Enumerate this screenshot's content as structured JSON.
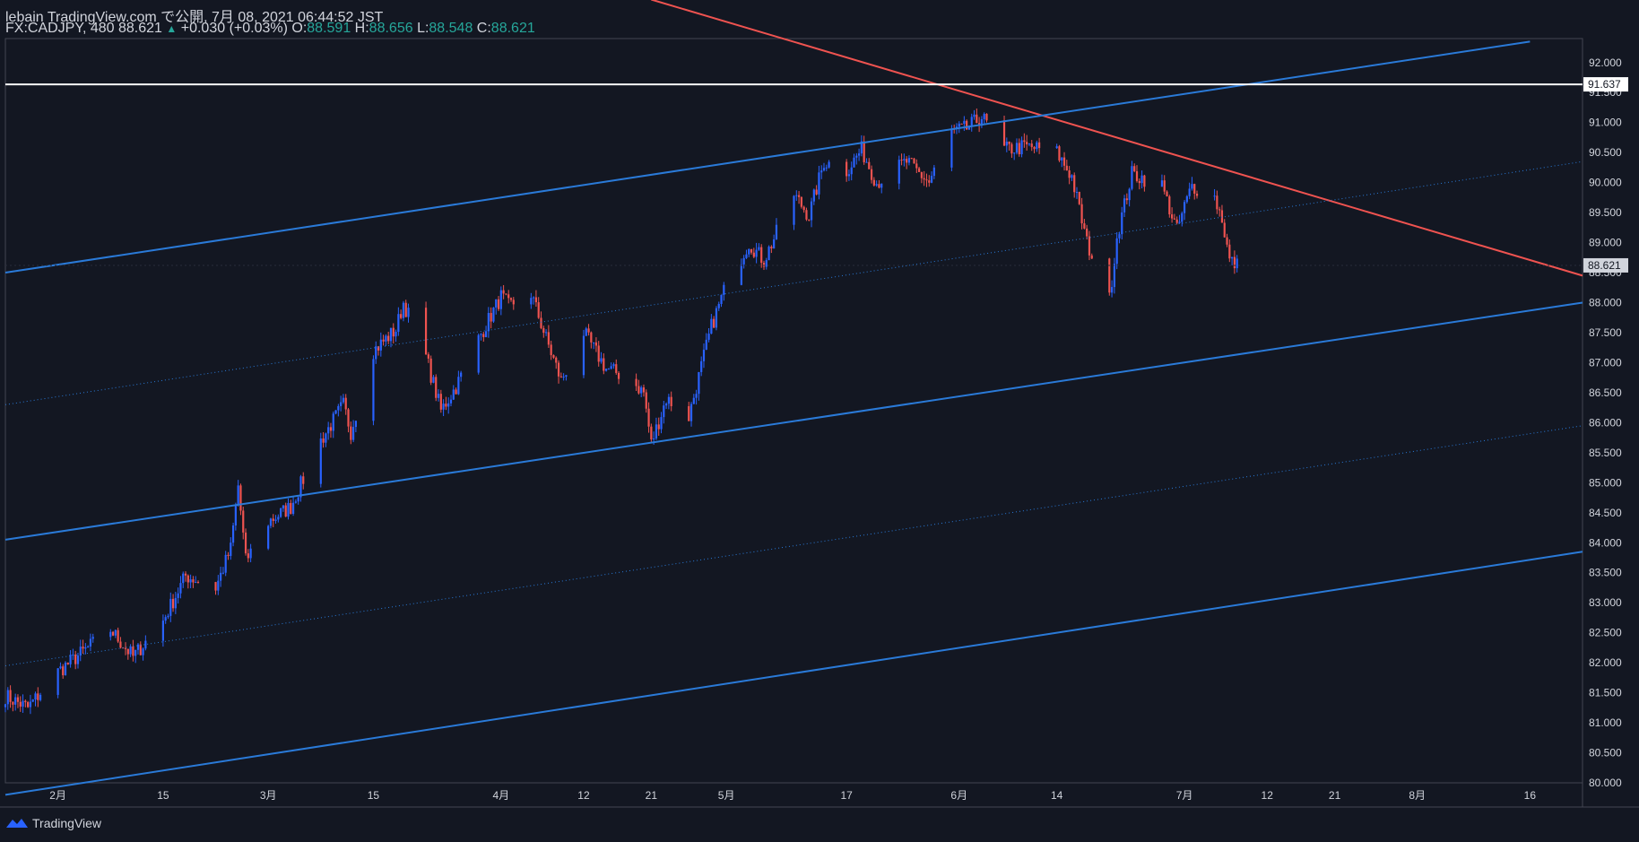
{
  "header": {
    "publish_line": "lebain TradingView.com で公開, 7月 08, 2021 06:44:52 JST",
    "symbol": "FX:CADJPY, 480",
    "last": "88.621",
    "change": "+0.030 (+0.03%)",
    "o_label": "O:",
    "o_value": "88.591",
    "h_label": "H:",
    "h_value": "88.656",
    "l_label": "L:",
    "l_value": "88.548",
    "c_label": "C:",
    "c_value": "88.621"
  },
  "footer": {
    "brand": "TradingView"
  },
  "colors": {
    "bg": "#131722",
    "up": "#2962ff",
    "down": "#ef5350",
    "channel": "#2a7ad8",
    "resistance": "#ef5350",
    "grid_text": "#d1d4dc"
  },
  "chart_data": {
    "type": "candlestick",
    "ylim": [
      80.0,
      92.4
    ],
    "y_ticks": [
      80.0,
      80.5,
      81.0,
      81.5,
      82.0,
      82.5,
      83.0,
      83.5,
      84.0,
      84.5,
      85.0,
      85.5,
      86.0,
      86.5,
      87.0,
      87.5,
      88.0,
      88.5,
      89.0,
      89.5,
      90.0,
      90.5,
      91.0,
      91.5,
      92.0
    ],
    "y_tick_labels": [
      "80.000",
      "80.500",
      "81.000",
      "81.500",
      "82.000",
      "82.500",
      "83.000",
      "83.500",
      "84.000",
      "84.500",
      "85.000",
      "85.500",
      "86.000",
      "86.500",
      "87.000",
      "87.500",
      "88.000",
      "88.500",
      "89.000",
      "89.500",
      "90.000",
      "90.500",
      "91.000",
      "91.500",
      "92.000"
    ],
    "x_start": "2021-01-25",
    "x_end": "2021-08-23",
    "x_ticks": [
      {
        "label": "2月",
        "date": "2021-02-01"
      },
      {
        "label": "15",
        "date": "2021-02-15"
      },
      {
        "label": "3月",
        "date": "2021-03-01"
      },
      {
        "label": "15",
        "date": "2021-03-15"
      },
      {
        "label": "4月",
        "date": "2021-04-01"
      },
      {
        "label": "12",
        "date": "2021-04-12"
      },
      {
        "label": "21",
        "date": "2021-04-21"
      },
      {
        "label": "5月",
        "date": "2021-05-01"
      },
      {
        "label": "17",
        "date": "2021-05-17"
      },
      {
        "label": "6月",
        "date": "2021-06-01"
      },
      {
        "label": "14",
        "date": "2021-06-14"
      },
      {
        "label": "7月",
        "date": "2021-07-01"
      },
      {
        "label": "12",
        "date": "2021-07-12"
      },
      {
        "label": "21",
        "date": "2021-07-21"
      },
      {
        "label": "8月",
        "date": "2021-08-01"
      },
      {
        "label": "16",
        "date": "2021-08-16"
      }
    ],
    "price_path": [
      [
        "2021-01-25",
        81.45
      ],
      [
        "2021-01-28",
        81.25
      ],
      [
        "2021-02-01",
        81.85
      ],
      [
        "2021-02-04",
        82.15
      ],
      [
        "2021-02-08",
        82.55
      ],
      [
        "2021-02-11",
        82.1
      ],
      [
        "2021-02-15",
        82.7
      ],
      [
        "2021-02-18",
        83.45
      ],
      [
        "2021-02-22",
        83.25
      ],
      [
        "2021-02-24",
        83.9
      ],
      [
        "2021-02-25",
        84.95
      ],
      [
        "2021-02-26",
        83.7
      ],
      [
        "2021-03-01",
        84.35
      ],
      [
        "2021-03-04",
        84.6
      ],
      [
        "2021-03-08",
        85.7
      ],
      [
        "2021-03-11",
        86.3
      ],
      [
        "2021-03-12",
        85.85
      ],
      [
        "2021-03-15",
        87.2
      ],
      [
        "2021-03-18",
        87.55
      ],
      [
        "2021-03-19",
        88.0
      ],
      [
        "2021-03-22",
        87.1
      ],
      [
        "2021-03-24",
        86.2
      ],
      [
        "2021-03-26",
        86.6
      ],
      [
        "2021-03-29",
        87.4
      ],
      [
        "2021-04-01",
        88.1
      ],
      [
        "2021-04-02",
        87.95
      ],
      [
        "2021-04-05",
        88.15
      ],
      [
        "2021-04-07",
        87.4
      ],
      [
        "2021-04-09",
        86.7
      ],
      [
        "2021-04-12",
        87.5
      ],
      [
        "2021-04-15",
        86.9
      ],
      [
        "2021-04-18",
        86.75
      ],
      [
        "2021-04-20",
        86.5
      ],
      [
        "2021-04-21",
        85.65
      ],
      [
        "2021-04-23",
        86.4
      ],
      [
        "2021-04-26",
        86.1
      ],
      [
        "2021-04-29",
        87.6
      ],
      [
        "2021-05-01",
        88.3
      ],
      [
        "2021-05-04",
        89.0
      ],
      [
        "2021-05-06",
        88.7
      ],
      [
        "2021-05-10",
        89.8
      ],
      [
        "2021-05-12",
        89.45
      ],
      [
        "2021-05-14",
        90.35
      ],
      [
        "2021-05-17",
        90.2
      ],
      [
        "2021-05-19",
        90.55
      ],
      [
        "2021-05-21",
        90.0
      ],
      [
        "2021-05-25",
        90.35
      ],
      [
        "2021-05-28",
        90.0
      ],
      [
        "2021-05-31",
        90.85
      ],
      [
        "2021-06-02",
        90.9
      ],
      [
        "2021-06-04",
        91.1
      ],
      [
        "2021-06-07",
        90.55
      ],
      [
        "2021-06-10",
        90.6
      ],
      [
        "2021-06-14",
        90.5
      ],
      [
        "2021-06-16",
        90.1
      ],
      [
        "2021-06-18",
        89.0
      ],
      [
        "2021-06-21",
        88.05
      ],
      [
        "2021-06-22",
        89.1
      ],
      [
        "2021-06-24",
        90.15
      ],
      [
        "2021-06-28",
        89.95
      ],
      [
        "2021-06-30",
        89.2
      ],
      [
        "2021-07-01",
        89.6
      ],
      [
        "2021-07-02",
        89.95
      ],
      [
        "2021-07-05",
        89.75
      ],
      [
        "2021-07-06",
        89.4
      ],
      [
        "2021-07-07",
        88.7
      ],
      [
        "2021-07-08",
        88.62
      ]
    ],
    "hlines": [
      {
        "value": 91.637,
        "label": "91.637",
        "color": "#ffffff"
      }
    ],
    "last_price": {
      "value": 88.621,
      "label": "88.621"
    },
    "trendlines": [
      {
        "role": "resistance",
        "from": [
          "2021-04-21",
          93.05
        ],
        "to": [
          "2021-08-23",
          88.45
        ],
        "style": "solid",
        "color": "#ef5350"
      },
      {
        "role": "channel-top",
        "from": [
          "2021-01-25",
          88.5
        ],
        "to": [
          "2021-08-16",
          92.35
        ],
        "style": "solid",
        "color": "#2a7ad8"
      },
      {
        "role": "channel-mid-upper",
        "from": [
          "2021-01-25",
          86.3
        ],
        "to": [
          "2021-08-23",
          90.35
        ],
        "style": "dotted",
        "color": "#2a7ad8"
      },
      {
        "role": "channel-middle",
        "from": [
          "2021-01-25",
          84.05
        ],
        "to": [
          "2021-08-23",
          88.0
        ],
        "style": "solid",
        "color": "#2a7ad8"
      },
      {
        "role": "channel-mid-lower",
        "from": [
          "2021-01-25",
          81.95
        ],
        "to": [
          "2021-08-23",
          85.95
        ],
        "style": "dotted",
        "color": "#2a7ad8"
      },
      {
        "role": "channel-bottom",
        "from": [
          "2021-01-25",
          79.8
        ],
        "to": [
          "2021-08-23",
          83.85
        ],
        "style": "solid",
        "color": "#2a7ad8"
      }
    ]
  }
}
